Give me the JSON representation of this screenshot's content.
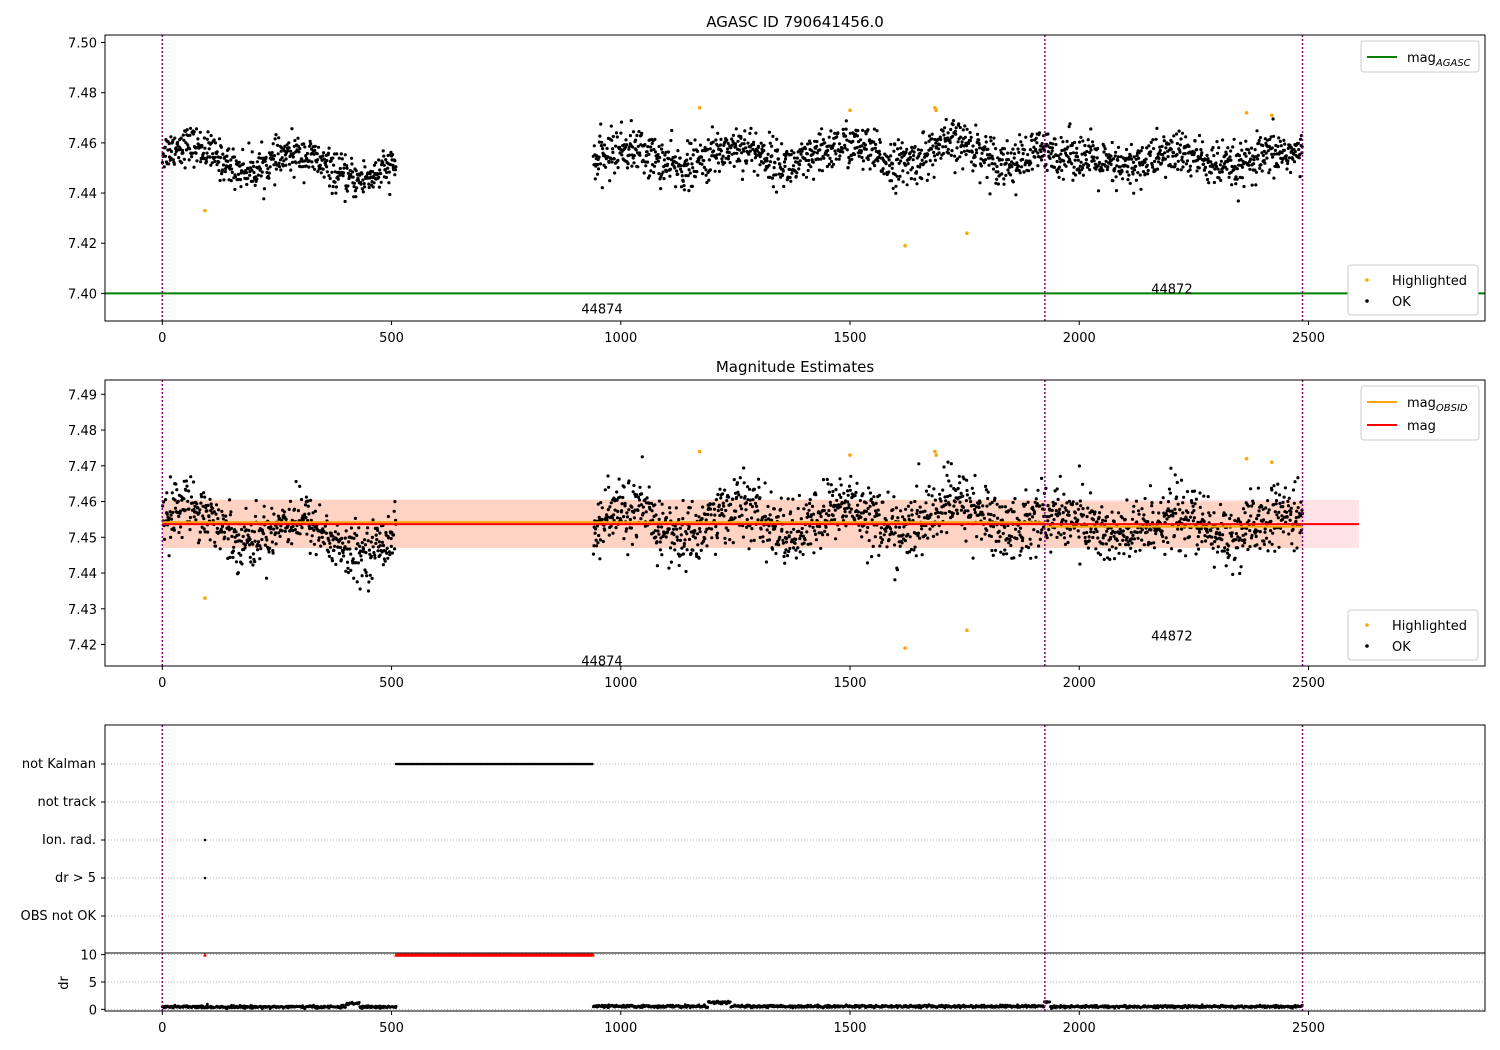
{
  "chart_data": [
    {
      "type": "scatter",
      "title": "AGASC ID 790641456.0",
      "xlim": [
        -125,
        2885
      ],
      "ylim": [
        7.389,
        7.503
      ],
      "xticks": [
        0,
        500,
        1000,
        1500,
        2000,
        2500
      ],
      "yticks": [
        7.4,
        7.42,
        7.44,
        7.46,
        7.48,
        7.5
      ],
      "ytick_labels": [
        "7.40",
        "7.42",
        "7.44",
        "7.46",
        "7.48",
        "7.50"
      ],
      "obs_boundaries": [
        0,
        1925,
        2487
      ],
      "obs_labels": [
        {
          "text": "44874",
          "x": 962,
          "y": 7.394
        },
        {
          "text": "44872",
          "x": 2205,
          "y": 7.402
        }
      ],
      "segments": [
        {
          "x_start": 0,
          "x_end": 510,
          "mean": 7.452,
          "amp": 0.004,
          "slope": -0.008,
          "noise": 0.005
        },
        {
          "x_start": 940,
          "x_end": 1925,
          "mean": 7.455,
          "amp": 0.004,
          "slope": 0.003,
          "noise": 0.006
        },
        {
          "x_start": 1925,
          "x_end": 2487,
          "mean": 7.453,
          "amp": 0.003,
          "slope": 0.0,
          "noise": 0.006
        }
      ],
      "series": [
        {
          "name": "mag",
          "sub": "AGASC",
          "type": "line",
          "color": "#008000",
          "x": [
            -125,
            2885
          ],
          "y": [
            7.4,
            7.4
          ]
        },
        {
          "name": "Highlighted",
          "type": "scatter",
          "color": "#ffa500",
          "x": [
            93,
            1172,
            1500,
            1620,
            1685,
            1688,
            1755,
            2365,
            2420
          ],
          "y": [
            7.433,
            7.474,
            7.473,
            7.419,
            7.474,
            7.473,
            7.424,
            7.472,
            7.471
          ]
        },
        {
          "name": "OK",
          "type": "scatter",
          "color": "#000000"
        }
      ],
      "legend_top": [
        {
          "label": "mag",
          "sub": "AGASC",
          "kind": "line",
          "color": "#008000"
        }
      ],
      "legend_bottom": [
        {
          "label": "Highlighted",
          "kind": "dot",
          "color": "#ffa500"
        },
        {
          "label": "OK",
          "kind": "dot",
          "color": "#000000"
        }
      ]
    },
    {
      "type": "scatter",
      "title": "Magnitude Estimates",
      "xlim": [
        -125,
        2885
      ],
      "ylim": [
        7.414,
        7.494
      ],
      "xticks": [
        0,
        500,
        1000,
        1500,
        2000,
        2500
      ],
      "yticks": [
        7.42,
        7.43,
        7.44,
        7.45,
        7.46,
        7.47,
        7.48,
        7.49
      ],
      "ytick_labels": [
        "7.42",
        "7.43",
        "7.44",
        "7.45",
        "7.46",
        "7.47",
        "7.48",
        "7.49"
      ],
      "obs_boundaries": [
        0,
        1925,
        2487
      ],
      "obs_labels": [
        {
          "text": "44874",
          "x": 962,
          "y": 7.4155
        },
        {
          "text": "44872",
          "x": 2205,
          "y": 7.4225
        }
      ],
      "segments": [
        {
          "x_start": 0,
          "x_end": 510,
          "mean": 7.452,
          "amp": 0.004,
          "slope": -0.008,
          "noise": 0.005
        },
        {
          "x_start": 940,
          "x_end": 1925,
          "mean": 7.455,
          "amp": 0.004,
          "slope": 0.003,
          "noise": 0.006
        },
        {
          "x_start": 1925,
          "x_end": 2487,
          "mean": 7.453,
          "amp": 0.003,
          "slope": 0.0,
          "noise": 0.006
        }
      ],
      "bands": [
        {
          "x": [
            0,
            2610
          ],
          "y": [
            7.447,
            7.4605
          ],
          "color": "#ffb6c1",
          "opacity": 0.38
        },
        {
          "x": [
            0,
            1925
          ],
          "y": [
            7.447,
            7.4605
          ],
          "color": "#ffbb88",
          "opacity": 0.38
        },
        {
          "x": [
            1925,
            2487
          ],
          "y": [
            7.447,
            7.46
          ],
          "color": "#ffbb88",
          "opacity": 0.38
        }
      ],
      "series": [
        {
          "name": "mag",
          "sub": "OBSID",
          "type": "line",
          "color": "#ffa500",
          "segments": [
            {
              "x": [
                0,
                1925
              ],
              "y": 7.4542
            },
            {
              "x": [
                1925,
                2487
              ],
              "y": 7.453
            }
          ]
        },
        {
          "name": "mag",
          "type": "line",
          "color": "#ff0000",
          "x": [
            0,
            2610
          ],
          "y": [
            7.4537,
            7.4537
          ]
        },
        {
          "name": "Highlighted",
          "type": "scatter",
          "color": "#ffa500",
          "x": [
            93,
            1172,
            1500,
            1620,
            1685,
            1688,
            1755,
            2365,
            2420
          ],
          "y": [
            7.433,
            7.474,
            7.473,
            7.419,
            7.474,
            7.473,
            7.424,
            7.472,
            7.471
          ]
        },
        {
          "name": "OK",
          "type": "scatter",
          "color": "#000000"
        }
      ],
      "legend_top": [
        {
          "label": "mag",
          "sub": "OBSID",
          "kind": "line",
          "color": "#ffa500"
        },
        {
          "label": "mag",
          "kind": "line",
          "color": "#ff0000"
        }
      ],
      "legend_bottom": [
        {
          "label": "Highlighted",
          "kind": "dot",
          "color": "#ffa500"
        },
        {
          "label": "OK",
          "kind": "dot",
          "color": "#000000"
        }
      ]
    },
    {
      "type": "scatter",
      "title": "",
      "xlim": [
        -125,
        2885
      ],
      "categories": [
        "not Kalman",
        "not track",
        "Ion. rad.",
        "dr > 5",
        "OBS not OK"
      ],
      "obs_boundaries": [
        0,
        1925,
        2487
      ],
      "flags": [
        {
          "category": "not Kalman",
          "x_range": [
            510,
            940
          ],
          "step": 4
        },
        {
          "category": "Ion. rad.",
          "x": [
            93
          ]
        },
        {
          "category": "dr > 5",
          "x": [
            93
          ]
        }
      ]
    },
    {
      "type": "scatter",
      "title": "",
      "ylabel": "dr",
      "xlim": [
        -125,
        2885
      ],
      "ylim": [
        -0.3,
        10.3
      ],
      "yticks": [
        0,
        5,
        10
      ],
      "ytick_labels": [
        "0",
        "5",
        "10"
      ],
      "xticks": [
        0,
        500,
        1000,
        1500,
        2000,
        2500
      ],
      "obs_boundaries": [
        0,
        1925,
        2487
      ],
      "clipped": {
        "x_range": [
          510,
          940
        ],
        "x_extra": [
          93
        ],
        "value": 10,
        "color": "#ff0000"
      },
      "dr_segments": [
        {
          "x_start": 0,
          "x_end": 510,
          "base": 0.45
        },
        {
          "x_start": 940,
          "x_end": 1925,
          "base": 0.55
        },
        {
          "x_start": 1925,
          "x_end": 2487,
          "base": 0.5
        }
      ]
    }
  ]
}
